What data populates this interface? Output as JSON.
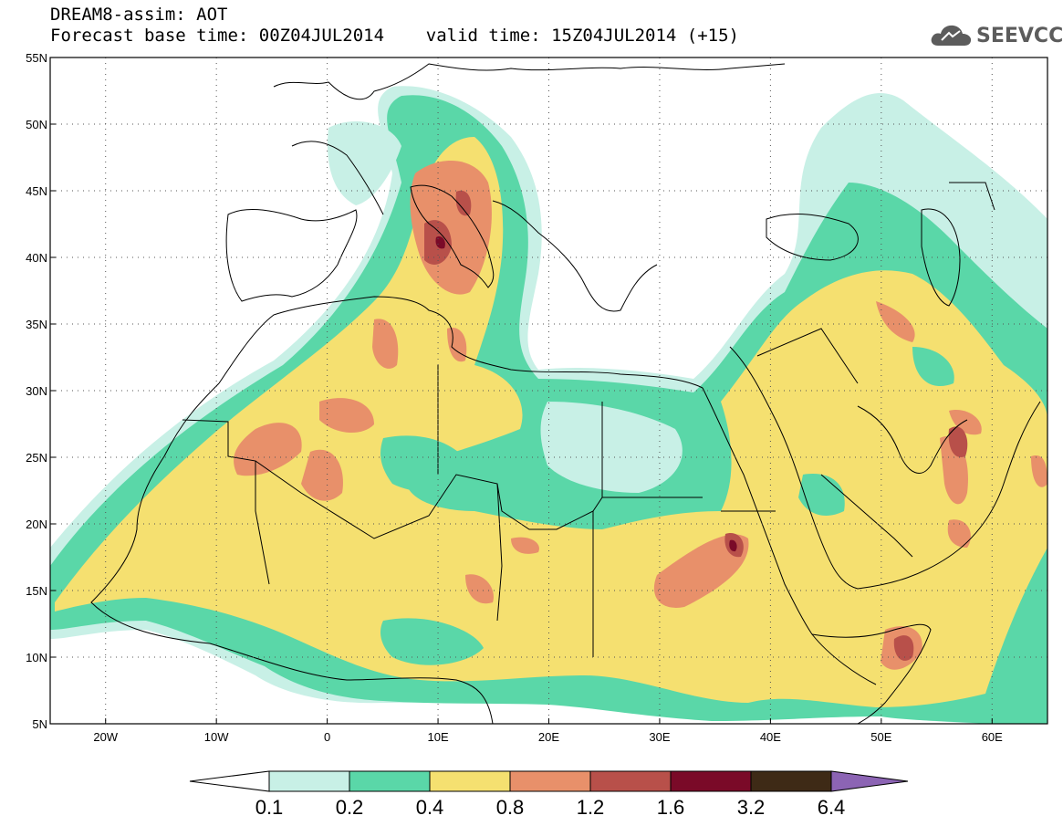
{
  "header": {
    "line1": "DREAM8-assim: AOT",
    "line2": "Forecast base time: 00Z04JUL2014    valid time: 15Z04JUL2014 (+15)"
  },
  "logo": {
    "text": "SEEVCCC",
    "icon": "cloud-icon"
  },
  "map": {
    "lat_range": [
      5,
      55
    ],
    "lon_range": [
      -25,
      65
    ],
    "lat_labels": [
      "5N",
      "10N",
      "15N",
      "20N",
      "25N",
      "30N",
      "35N",
      "40N",
      "45N",
      "50N",
      "55N"
    ],
    "lat_values": [
      5,
      10,
      15,
      20,
      25,
      30,
      35,
      40,
      45,
      50,
      55
    ],
    "lon_labels": [
      "20W",
      "10W",
      "0",
      "10E",
      "20E",
      "30E",
      "40E",
      "50E",
      "60E"
    ],
    "lon_values": [
      -20,
      -10,
      0,
      10,
      20,
      30,
      40,
      50,
      60
    ],
    "grid": "dotted"
  },
  "colorbar": {
    "labels": [
      "0.1",
      "0.2",
      "0.4",
      "0.8",
      "1.2",
      "1.6",
      "3.2",
      "6.4"
    ],
    "colors": [
      "#c8f0e6",
      "#5ad7a8",
      "#f5e070",
      "#e8906a",
      "#b8504a",
      "#7a0a28",
      "#3e2a16"
    ],
    "under_color": "#ffffff",
    "over_color": "#8c64b4"
  }
}
